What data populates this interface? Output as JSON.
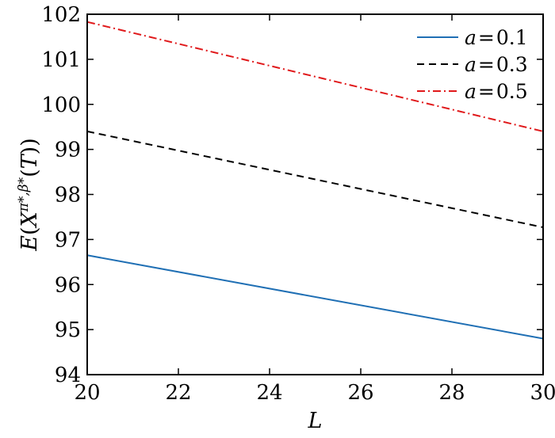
{
  "chart_data": {
    "type": "line",
    "xlabel": "L",
    "ylabel": "E(X^{π*,β*}(T))",
    "ylabel_parts": {
      "E": "E",
      "open": "(",
      "X": "X",
      "sup": "π*,β*",
      "T": "T",
      "mid": "(",
      "close": "))"
    },
    "xlim": [
      20,
      30
    ],
    "ylim": [
      94,
      102
    ],
    "xticks": [
      20,
      22,
      24,
      26,
      28,
      30
    ],
    "yticks": [
      94,
      95,
      96,
      97,
      98,
      99,
      100,
      101,
      102
    ],
    "xtick_labels": [
      "20",
      "22",
      "24",
      "26",
      "28",
      "30"
    ],
    "ytick_labels": [
      "94",
      "95",
      "96",
      "97",
      "98",
      "99",
      "100",
      "101",
      "102"
    ],
    "grid": false,
    "legend_position": "top-right",
    "series": [
      {
        "name": "a = 0.1",
        "legend_var": "a",
        "legend_eq": "=",
        "legend_val": "0.1",
        "color": "#1f6fb4",
        "dash": "solid",
        "x": [
          20,
          30
        ],
        "y": [
          96.65,
          94.8
        ]
      },
      {
        "name": "a = 0.3",
        "legend_var": "a",
        "legend_eq": "=",
        "legend_val": "0.3",
        "color": "#000000",
        "dash": "dashed",
        "x": [
          20,
          30
        ],
        "y": [
          99.4,
          97.27
        ]
      },
      {
        "name": "a = 0.5",
        "legend_var": "a",
        "legend_eq": "=",
        "legend_val": "0.5",
        "color": "#e0191b",
        "dash": "dashdot",
        "x": [
          20,
          30
        ],
        "y": [
          101.83,
          99.4
        ]
      }
    ]
  }
}
